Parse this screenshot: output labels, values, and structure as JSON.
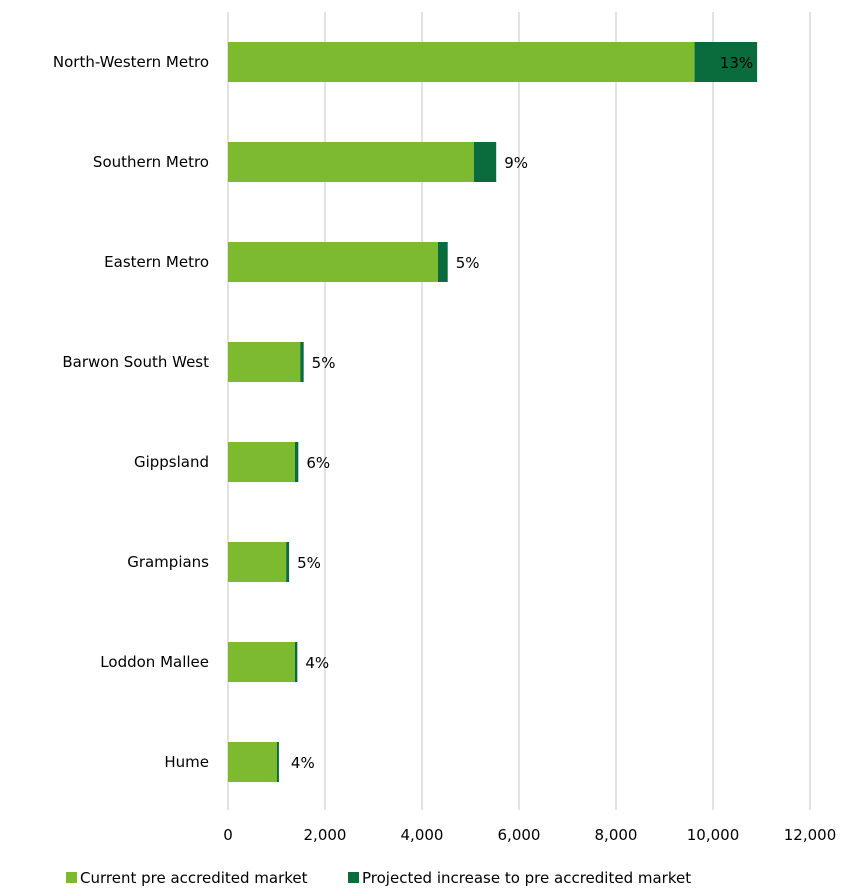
{
  "chart_data": {
    "type": "bar",
    "orientation": "horizontal",
    "stacked": true,
    "categories": [
      "North-Western Metro",
      "Southern Metro",
      "Eastern Metro",
      "Barwon South West",
      "Gippsland",
      "Grampians",
      "Loddon Mallee",
      "Hume"
    ],
    "series": [
      {
        "name": "Current pre accredited market",
        "color": "#7dba2f",
        "values": [
          9620,
          5070,
          4330,
          1490,
          1380,
          1200,
          1380,
          1010
        ]
      },
      {
        "name": "Projected increase to pre accredited market",
        "color": "#0a6b3c",
        "values": [
          1290,
          460,
          200,
          70,
          70,
          60,
          50,
          40
        ]
      }
    ],
    "data_labels": [
      "13%",
      "9%",
      "5%",
      "5%",
      "6%",
      "5%",
      "4%",
      "4%"
    ],
    "xlim": [
      0,
      12000
    ],
    "x_ticks": [
      0,
      2000,
      4000,
      6000,
      8000,
      10000,
      12000
    ],
    "x_tick_labels": [
      "0",
      "2,000",
      "4,000",
      "6,000",
      "8,000",
      "10,000",
      "12,000"
    ],
    "grid": true,
    "legend_position": "bottom",
    "title": "",
    "xlabel": "",
    "ylabel": ""
  }
}
